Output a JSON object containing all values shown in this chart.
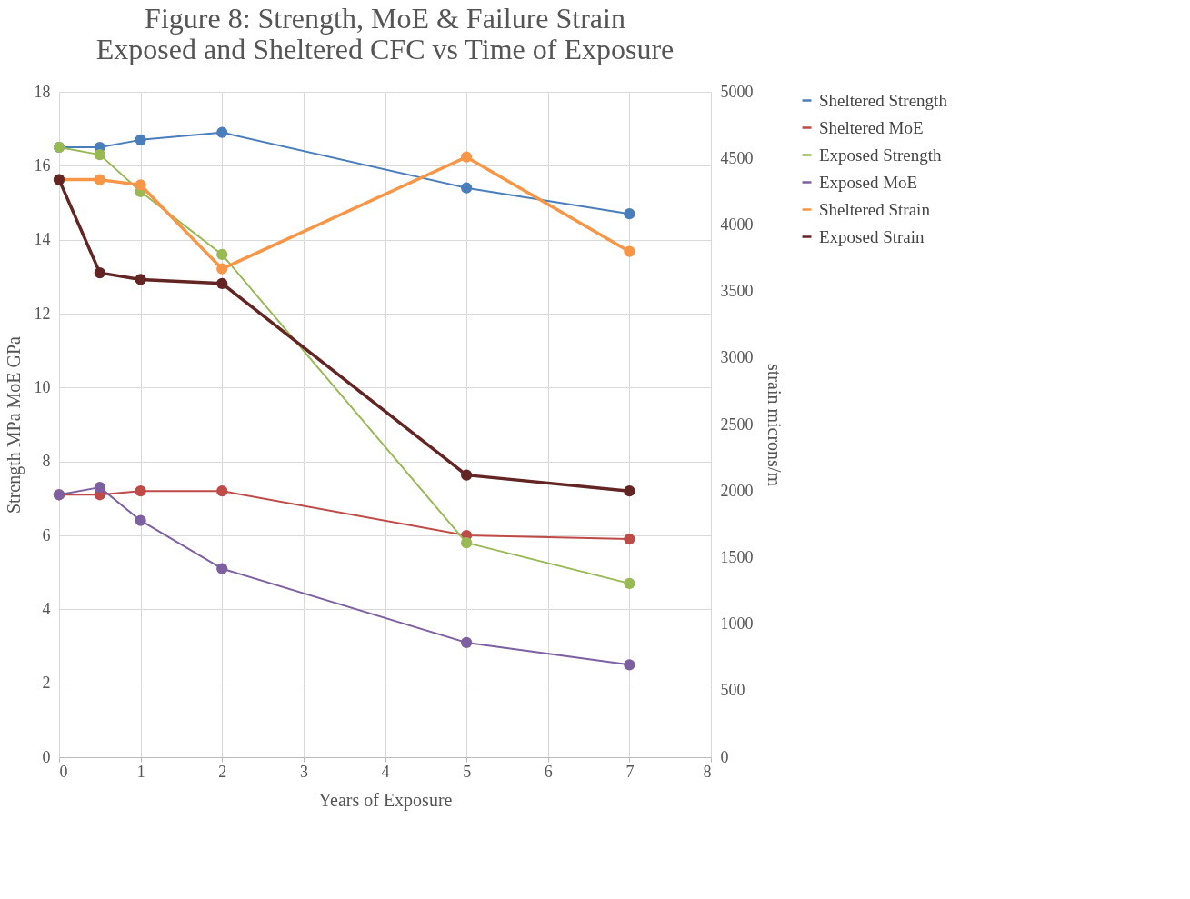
{
  "chart_data": {
    "type": "line",
    "title": [
      "Figure 8: Strength, MoE & Failure Strain",
      "Exposed and Sheltered CFC vs Time of Exposure"
    ],
    "xlabel": "Years of Exposure",
    "ylabel": "Strength MPa MoE GPa",
    "y2label": "strain microns/m",
    "x": [
      0,
      0.5,
      1,
      2,
      5,
      7
    ],
    "xlim": [
      0,
      8
    ],
    "xticks": [
      0,
      1,
      2,
      3,
      4,
      5,
      6,
      7,
      8
    ],
    "ylim": [
      0,
      18
    ],
    "yticks": [
      0,
      2,
      4,
      6,
      8,
      10,
      12,
      14,
      16,
      18
    ],
    "y2lim": [
      0,
      5000
    ],
    "y2ticks": [
      0,
      500,
      1000,
      1500,
      2000,
      2500,
      3000,
      3500,
      4000,
      4500,
      5000
    ],
    "grid": true,
    "legend": "right",
    "marker": "circle",
    "line_style": "solid",
    "series": [
      {
        "name": "Sheltered Strength",
        "color": "#4a7ebb",
        "values": [
          16.5,
          16.5,
          16.7,
          16.9,
          15.4,
          14.7
        ]
      },
      {
        "name": "Sheltered MoE",
        "color": "#be4b48",
        "values": [
          7.1,
          7.1,
          7.2,
          7.2,
          6.0,
          5.9
        ]
      },
      {
        "name": "Exposed Strength",
        "color": "#98b954",
        "values": [
          16.5,
          16.3,
          15.3,
          13.6,
          5.8,
          4.7
        ]
      },
      {
        "name": "Exposed MoE",
        "color": "#7d60a0",
        "values": [
          7.1,
          7.3,
          6.4,
          5.1,
          3.1,
          2.5
        ]
      },
      {
        "name": "Sheltered Strain",
        "color": "#f79646",
        "axis": "y2",
        "values": [
          4340,
          4340,
          4300,
          3670,
          4510,
          3800
        ]
      },
      {
        "name": "Exposed Strain",
        "color": "#632523",
        "axis": "y2",
        "values": [
          4340,
          3640,
          3590,
          3560,
          2120,
          2000
        ]
      }
    ]
  }
}
